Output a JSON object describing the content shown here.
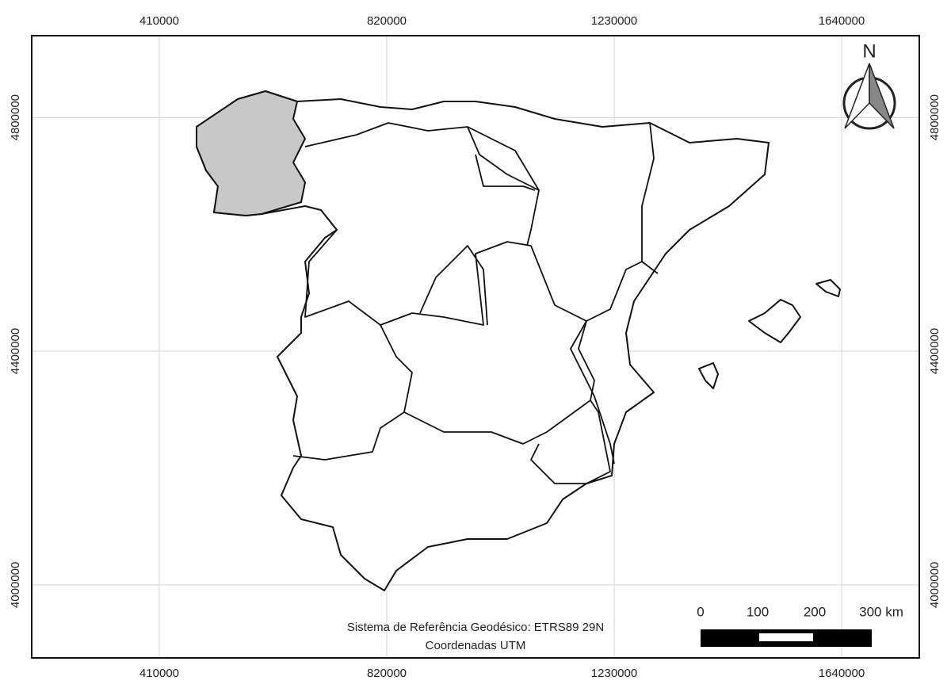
{
  "map": {
    "xlim": [
      180000,
      1780000
    ],
    "ylim": [
      3875000,
      4940000
    ],
    "xticks": [
      410000,
      820000,
      1230000,
      1640000
    ],
    "yticks": [
      4000000,
      4400000,
      4800000
    ],
    "grid": true,
    "highlight_color": "#c8c8c8",
    "north_label": "N",
    "scale_bar": {
      "ticks": [
        0,
        100,
        200,
        {
          "value": 300,
          "label": "300 km"
        }
      ]
    },
    "caption": [
      "Sistema de Referência Geodésico: ETRS89 29N",
      "Coordenadas UTM"
    ]
  }
}
